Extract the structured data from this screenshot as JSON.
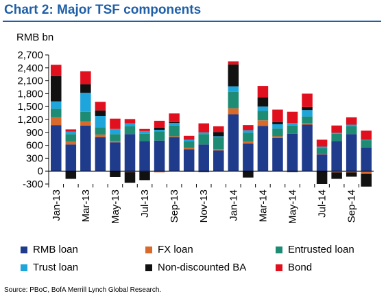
{
  "title": "Chart 2: Major TSF components",
  "source": "Source: PBoC, BofA Merrill Lynch Global Research.",
  "colors": {
    "title": "#1f5fa8",
    "rmb_loan": "#1f3b8c",
    "fx_loan": "#d96a2b",
    "entrusted_loan": "#1e8c74",
    "trust_loan": "#1ea5dc",
    "non_discounted_ba": "#111111",
    "bond": "#e0101e"
  },
  "chart_data": {
    "type": "bar",
    "stacked": true,
    "ylabel": "RMB bn",
    "ylim": [
      -300,
      2700
    ],
    "yticks": [
      -300,
      0,
      300,
      600,
      900,
      1200,
      1500,
      1800,
      2100,
      2400,
      2700
    ],
    "ytick_labels": [
      "-300",
      "0",
      "300",
      "600",
      "900",
      "1,200",
      "1,500",
      "1,800",
      "2,100",
      "2,400",
      "2,700"
    ],
    "categories": [
      "Jan-13",
      "Feb-13",
      "Mar-13",
      "Apr-13",
      "May-13",
      "Jun-13",
      "Jul-13",
      "Aug-13",
      "Sep-13",
      "Oct-13",
      "Nov-13",
      "Dec-13",
      "Jan-14",
      "Feb-14",
      "Mar-14",
      "Apr-14",
      "May-14",
      "Jun-14",
      "Jul-14",
      "Aug-14",
      "Sep-14",
      "Oct-14"
    ],
    "tick_labels": [
      "Jan-13",
      "Mar-13",
      "May-13",
      "Jul-13",
      "Sep-13",
      "Nov-13",
      "Jan-14",
      "Mar-14",
      "May-14",
      "Jul-14",
      "Sep-14"
    ],
    "legend_position": "bottom",
    "grid": false,
    "series": [
      {
        "name": "RMB loan",
        "color_key": "rmb_loan",
        "values": [
          1070,
          620,
          1060,
          790,
          670,
          860,
          700,
          710,
          790,
          510,
          620,
          480,
          1320,
          640,
          1050,
          770,
          870,
          1080,
          390,
          700,
          860,
          550
        ]
      },
      {
        "name": "FX loan",
        "color_key": "fx_loan",
        "values": [
          180,
          70,
          100,
          60,
          30,
          -20,
          -10,
          -30,
          20,
          30,
          0,
          30,
          140,
          50,
          130,
          40,
          0,
          40,
          10,
          -30,
          -30,
          -60
        ]
      },
      {
        "name": "Entrusted loan",
        "color_key": "entrusted_loan",
        "values": [
          200,
          170,
          220,
          170,
          160,
          180,
          170,
          210,
          250,
          150,
          240,
          280,
          380,
          200,
          220,
          180,
          190,
          150,
          130,
          170,
          180,
          170
        ]
      },
      {
        "name": "Trust loan",
        "color_key": "trust_loan",
        "values": [
          170,
          60,
          440,
          260,
          120,
          70,
          60,
          40,
          60,
          40,
          40,
          20,
          130,
          60,
          100,
          100,
          60,
          150,
          40,
          20,
          40,
          10
        ]
      },
      {
        "name": "Non-discounted BA",
        "color_key": "non_discounted_ba",
        "values": [
          590,
          -180,
          200,
          130,
          -140,
          -250,
          -200,
          50,
          20,
          -10,
          -20,
          100,
          510,
          -150,
          210,
          50,
          -20,
          70,
          -300,
          -150,
          -100,
          -300
        ]
      },
      {
        "name": "Bond",
        "color_key": "bond",
        "values": [
          260,
          50,
          300,
          200,
          240,
          100,
          50,
          160,
          200,
          90,
          210,
          130,
          70,
          120,
          270,
          290,
          260,
          310,
          160,
          170,
          170,
          210
        ]
      }
    ]
  }
}
